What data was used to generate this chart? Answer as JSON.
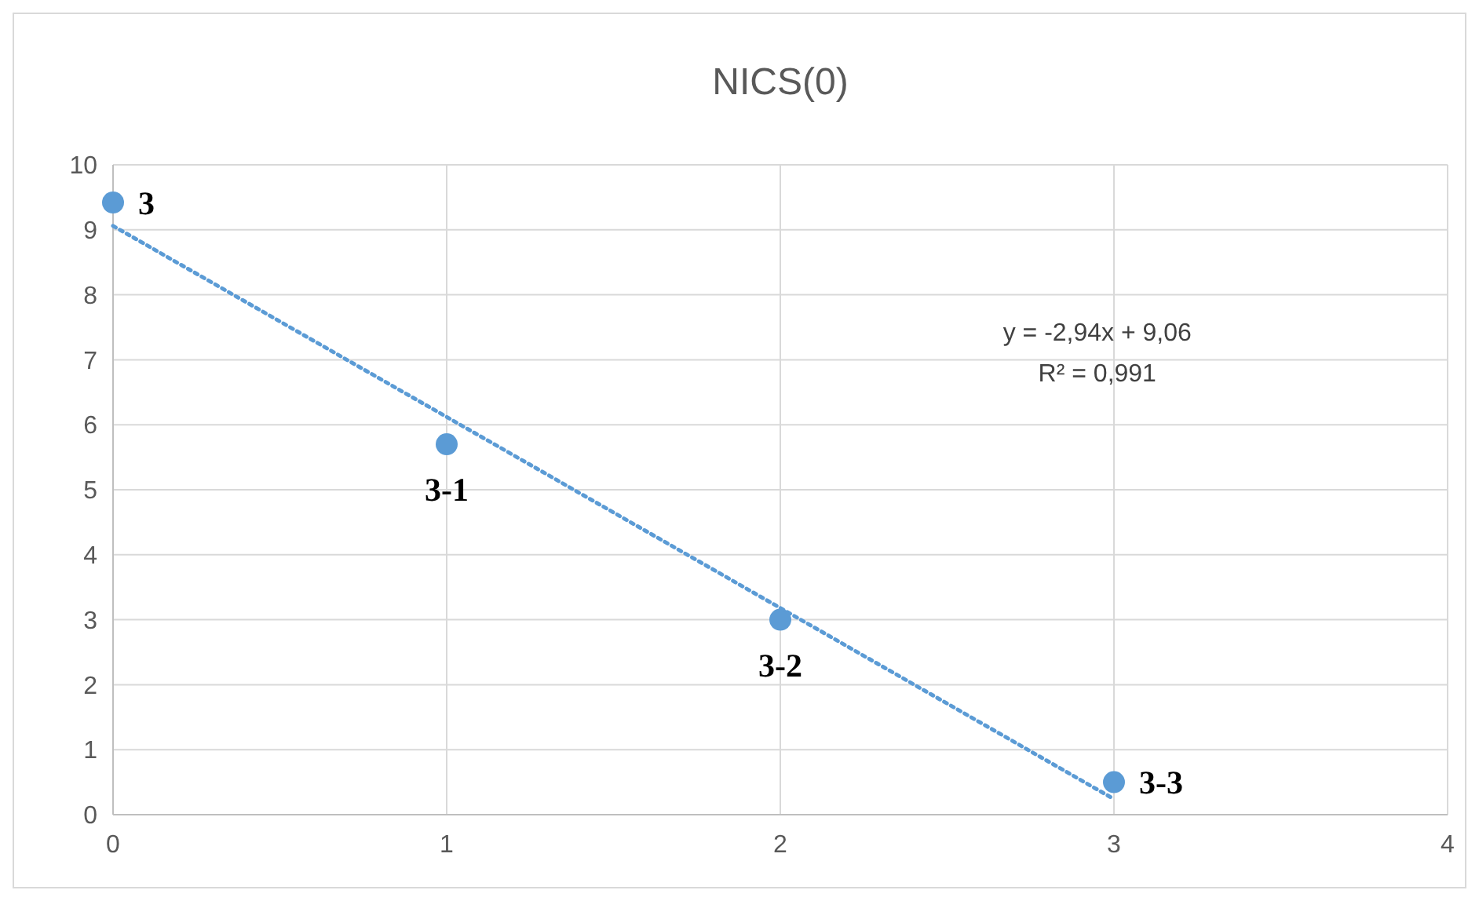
{
  "chart_data": {
    "type": "scatter",
    "title": "NICS(0)",
    "series": [
      {
        "color": "#5b9bd5",
        "x": [
          0,
          1,
          2,
          3
        ],
        "values": [
          9.42,
          5.7,
          3.0,
          0.5
        ],
        "marker": "circle"
      },
      {
        "type": "line",
        "color": "#5b9bd5",
        "x": [
          0,
          3
        ],
        "values": [
          9.06,
          0.24
        ],
        "line_style": "dotted"
      }
    ],
    "annotations": [
      {
        "text": "3",
        "x": 0,
        "y": 9.42
      },
      {
        "text": "3-1",
        "x": 1,
        "y": 5.7
      },
      {
        "text": "3-2",
        "x": 2,
        "y": 3.0
      },
      {
        "text": "3-3",
        "x": 3,
        "y": 0.5
      },
      "y = -2,94x + 9,06",
      "R² = 0,991"
    ],
    "xlim": [
      0,
      4
    ],
    "xticks": [
      0,
      1,
      2,
      3,
      4
    ],
    "ylim": [
      0,
      10
    ],
    "yticks": [
      0,
      1,
      2,
      3,
      4,
      5,
      6,
      7,
      8,
      9,
      10
    ],
    "grid": true
  }
}
